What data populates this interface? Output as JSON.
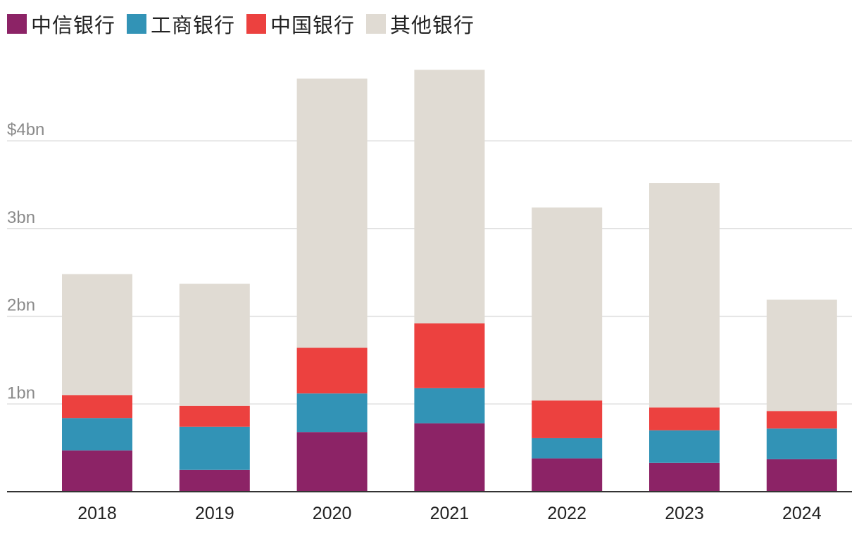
{
  "chart_data": {
    "type": "bar",
    "stacked": true,
    "categories": [
      "2018",
      "2019",
      "2020",
      "2021",
      "2022",
      "2023",
      "2024"
    ],
    "series": [
      {
        "name": "中信银行",
        "color": "#8c2366",
        "values": [
          0.47,
          0.25,
          0.68,
          0.78,
          0.38,
          0.33,
          0.37
        ]
      },
      {
        "name": "工商银行",
        "color": "#3293b6",
        "values": [
          0.37,
          0.49,
          0.44,
          0.4,
          0.23,
          0.37,
          0.35
        ]
      },
      {
        "name": "中国银行",
        "color": "#ec413f",
        "values": [
          0.26,
          0.24,
          0.52,
          0.74,
          0.43,
          0.26,
          0.2
        ]
      },
      {
        "name": "其他银行",
        "color": "#e0dbd3",
        "values": [
          1.38,
          1.39,
          3.07,
          2.89,
          2.2,
          2.56,
          1.27
        ]
      }
    ],
    "yticks": [
      {
        "value": 1,
        "label": "1bn"
      },
      {
        "value": 2,
        "label": "2bn"
      },
      {
        "value": 3,
        "label": "3bn"
      },
      {
        "value": 4,
        "label": "$4bn"
      }
    ],
    "ylim": [
      0,
      5
    ],
    "grid": true,
    "legend_position": "top-left"
  }
}
